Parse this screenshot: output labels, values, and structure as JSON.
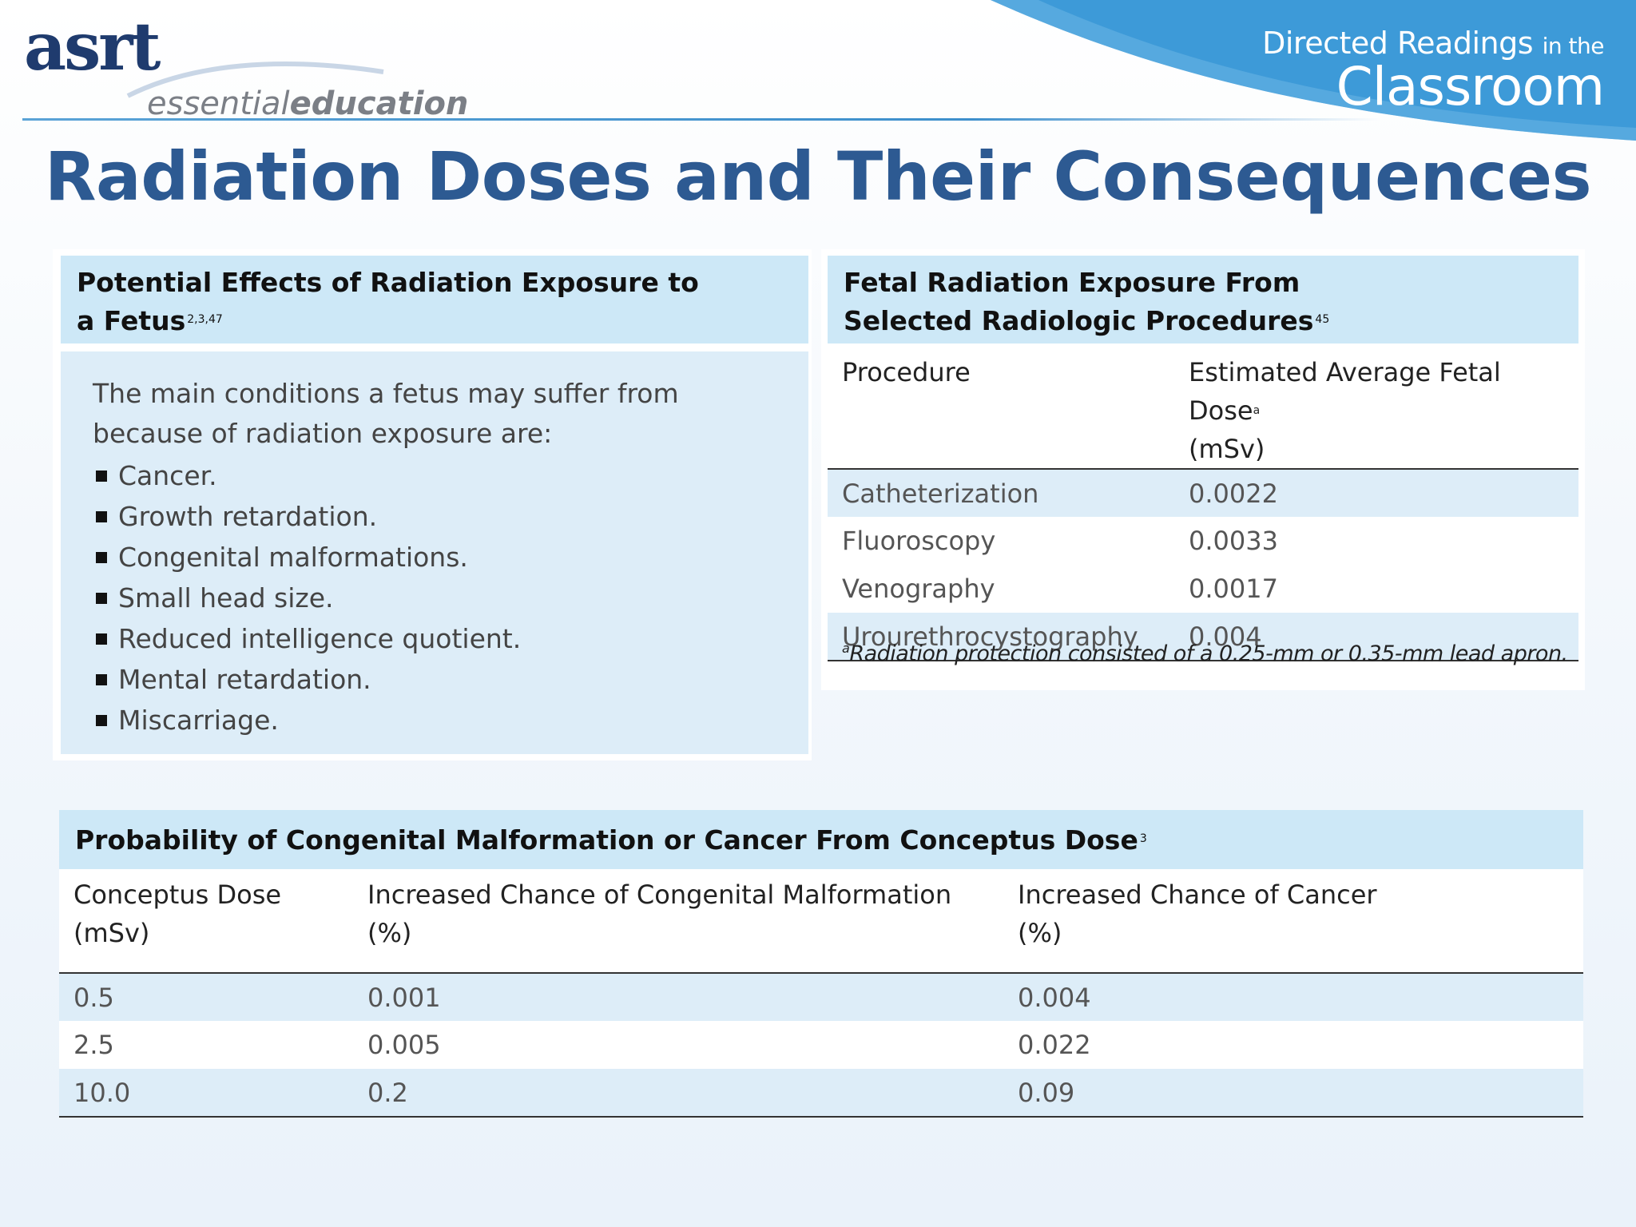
{
  "header": {
    "logo_main": "asrt",
    "logo_sub_light": "essential",
    "logo_sub_bold": "education",
    "program_line1_a": "Directed Readings",
    "program_line1_b": "in the",
    "program_line2": "Classroom",
    "accent_color": "#3d9ad8"
  },
  "title": "Radiation Doses and Their Consequences",
  "fetus_panel": {
    "heading_line1": "Potential Effects of Radiation Exposure to",
    "heading_line2": "a Fetus",
    "heading_ref": "2,3,47",
    "intro": "The main conditions a fetus may suffer from because of radiation exposure are:",
    "items": [
      "Cancer.",
      "Growth retardation.",
      "Congenital malformations.",
      "Small head size.",
      "Reduced intelligence quotient.",
      "Mental retardation.",
      "Miscarriage."
    ]
  },
  "fetal_panel": {
    "heading_line1": "Fetal Radiation Exposure From",
    "heading_line2": "Selected Radiologic Procedures",
    "heading_ref": "45",
    "col_procedure": "Procedure",
    "col_dose_line1": "Estimated Average Fetal Dose",
    "col_dose_mark": "a",
    "col_dose_line2": "(mSv)",
    "rows": [
      {
        "procedure": "Catheterization",
        "dose": "0.0022"
      },
      {
        "procedure": "Fluoroscopy",
        "dose": "0.0033"
      },
      {
        "procedure": "Venography",
        "dose": "0.0017"
      },
      {
        "procedure": "Urourethrocystography",
        "dose": "0.004"
      }
    ],
    "footnote_mark": "a",
    "footnote": "Radiation protection consisted of a 0.25-mm or 0.35-mm lead apron."
  },
  "probability_panel": {
    "heading": "Probability of Congenital Malformation or Cancer From Conceptus Dose",
    "heading_ref": "3",
    "col_dose_line1": "Conceptus Dose",
    "col_dose_line2": "(mSv)",
    "col_malf_line1": "Increased Chance of Congenital Malformation",
    "col_malf_line2": "(%)",
    "col_cancer_line1": "Increased Chance of Cancer",
    "col_cancer_line2": "(%)",
    "rows": [
      {
        "dose": "0.5",
        "malformation": "0.001",
        "cancer": "0.004"
      },
      {
        "dose": "2.5",
        "malformation": "0.005",
        "cancer": "0.022"
      },
      {
        "dose": "10.0",
        "malformation": "0.2",
        "cancer": "0.09"
      }
    ]
  }
}
